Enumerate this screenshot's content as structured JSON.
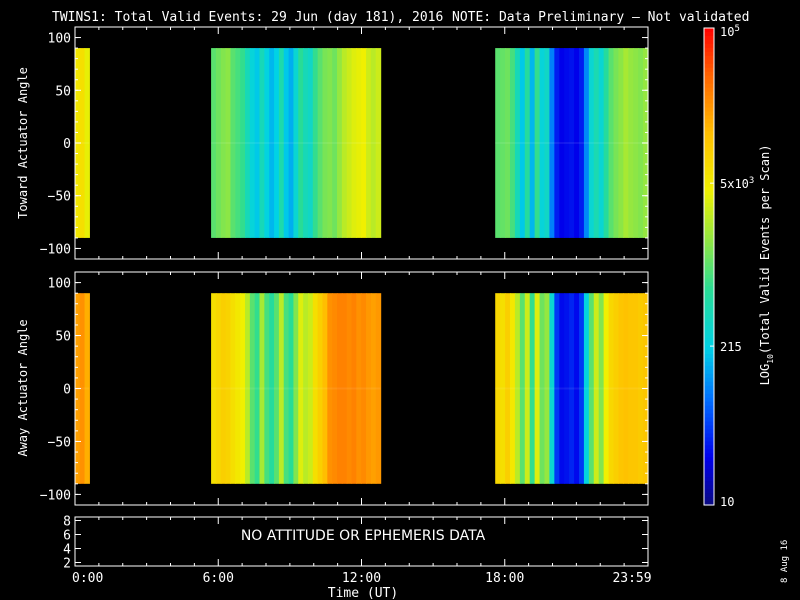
{
  "header": {
    "title": "TWINS1: Total Valid Events: 29 Jun (day 181), 2016",
    "note": "NOTE: Data Preliminary – Not validated",
    "note_color": "#ff2020"
  },
  "footer": {
    "date_stamp": "8 Aug 16"
  },
  "chart_data": [
    {
      "type": "heatmap",
      "panel": "top",
      "ylabel": "Toward Actuator Angle",
      "ylim": [
        -110,
        110
      ],
      "yticks": [
        100,
        50,
        0,
        -50,
        -100
      ],
      "ytick_labels": [
        "100",
        "50",
        "0",
        "−50",
        "−100"
      ],
      "data_extent_y": [
        -90,
        90
      ],
      "xlim_hours": [
        0,
        24
      ],
      "segments": [
        {
          "start": 0.0,
          "end": 0.6,
          "values": [
            6.8,
            7.0,
            6.5
          ]
        },
        {
          "start": 5.7,
          "end": 12.8,
          "values": [
            5.0,
            5.2,
            5.4,
            5.5,
            5.0,
            4.8,
            4.6,
            4.0,
            3.5,
            3.2,
            4.0,
            3.4,
            3.0,
            3.3,
            4.2,
            3.2,
            2.9,
            3.6,
            4.5,
            4.0,
            3.8,
            4.6,
            5.0,
            5.3,
            5.4,
            5.2,
            5.6,
            6.0,
            6.2,
            6.4,
            6.5,
            6.6,
            6.2,
            6.0,
            6.2
          ]
        },
        {
          "start": 17.6,
          "end": 24.0,
          "values": [
            5.0,
            5.1,
            5.2,
            4.8,
            4.0,
            3.2,
            4.4,
            3.0,
            4.6,
            3.5,
            3.8,
            2.4,
            1.3,
            1.0,
            1.1,
            1.2,
            1.0,
            1.3,
            2.5,
            3.6,
            4.1,
            3.6,
            4.4,
            5.0,
            5.3,
            5.5,
            5.8,
            5.6,
            5.5,
            5.4,
            5.6
          ]
        }
      ]
    },
    {
      "type": "heatmap",
      "panel": "middle",
      "ylabel": "Away Actuator Angle",
      "ylim": [
        -110,
        110
      ],
      "yticks": [
        100,
        50,
        0,
        -50,
        -100
      ],
      "ytick_labels": [
        "100",
        "50",
        "0",
        "−50",
        "−100"
      ],
      "data_extent_y": [
        -90,
        90
      ],
      "xlim_hours": [
        0,
        24
      ],
      "segments": [
        {
          "start": 0.0,
          "end": 0.6,
          "values": [
            8.2,
            8.4,
            8.0
          ]
        },
        {
          "start": 5.7,
          "end": 12.8,
          "values": [
            7.0,
            7.2,
            7.4,
            7.3,
            7.0,
            6.8,
            6.6,
            6.0,
            5.0,
            4.6,
            5.8,
            4.8,
            4.4,
            5.0,
            6.0,
            4.8,
            4.5,
            5.4,
            6.4,
            6.0,
            6.2,
            7.0,
            7.4,
            7.8,
            8.4,
            8.5,
            8.6,
            8.6,
            8.5,
            8.6,
            8.4,
            8.5,
            8.3,
            8.2,
            8.3
          ]
        },
        {
          "start": 17.6,
          "end": 24.0,
          "values": [
            7.2,
            7.0,
            7.4,
            6.8,
            6.0,
            5.0,
            6.2,
            4.6,
            6.4,
            5.2,
            5.6,
            3.6,
            1.6,
            1.1,
            1.2,
            1.4,
            1.1,
            1.6,
            3.4,
            5.0,
            6.2,
            5.4,
            6.6,
            7.2,
            7.4,
            7.6,
            7.7,
            7.6,
            7.6,
            7.5,
            7.6
          ]
        }
      ]
    }
  ],
  "bottom_panel": {
    "message": "NO ATTITUDE OR EPHEMERIS DATA",
    "ylim": [
      1.5,
      8.5
    ],
    "ytick_labels": [
      "8",
      "6",
      "4",
      "2"
    ],
    "xtick_labels": [
      "0:00",
      "6:00",
      "12:00",
      "18:00",
      "23:59"
    ],
    "xtick_hours": [
      0,
      6,
      12,
      18,
      23.983
    ],
    "xlabel": "Time (UT)"
  },
  "colorbar": {
    "label": "LOG",
    "label_sub": "10",
    "label_rest": "(Total Valid Events per Scan)",
    "scale": "log",
    "range": [
      10,
      100000
    ],
    "ticks": [
      {
        "value": 100000,
        "base": "10",
        "sup": "5",
        "sub": ""
      },
      {
        "value": 5000,
        "base": "5x10",
        "sup": "3",
        "sub": ""
      },
      {
        "value": 215,
        "base": "215",
        "sup": "",
        "sub": ""
      },
      {
        "value": 10,
        "base": "10",
        "sup": "",
        "sub": ""
      }
    ]
  }
}
